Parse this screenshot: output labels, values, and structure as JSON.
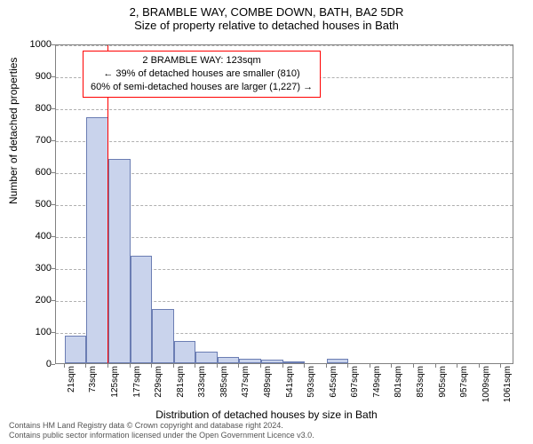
{
  "title_line1": "2, BRAMBLE WAY, COMBE DOWN, BATH, BA2 5DR",
  "title_line2": "Size of property relative to detached houses in Bath",
  "y_axis_label": "Number of detached properties",
  "x_axis_label": "Distribution of detached houses by size in Bath",
  "chart": {
    "type": "histogram",
    "background_color": "#ffffff",
    "grid_color": "#b0b0b0",
    "axis_color": "#808080",
    "bar_fill_color": "#c9d3ec",
    "bar_border_color": "#6b7db3",
    "marker_line_color": "#ff0000",
    "anno_border_color": "#ff0000",
    "x_min_sqm": 0,
    "x_max_sqm": 1092,
    "y_min": 0,
    "y_max": 1000,
    "y_tick_step": 100,
    "y_ticks": [
      0,
      100,
      200,
      300,
      400,
      500,
      600,
      700,
      800,
      900,
      1000
    ],
    "x_tick_labels": [
      "21sqm",
      "73sqm",
      "125sqm",
      "177sqm",
      "229sqm",
      "281sqm",
      "333sqm",
      "385sqm",
      "437sqm",
      "489sqm",
      "541sqm",
      "593sqm",
      "645sqm",
      "697sqm",
      "749sqm",
      "801sqm",
      "853sqm",
      "905sqm",
      "957sqm",
      "1009sqm",
      "1061sqm"
    ],
    "x_tick_positions_sqm": [
      21,
      73,
      125,
      177,
      229,
      281,
      333,
      385,
      437,
      489,
      541,
      593,
      645,
      697,
      749,
      801,
      853,
      905,
      957,
      1009,
      1061
    ],
    "marker_position_sqm": 123,
    "bin_width_sqm": 52,
    "bins": [
      {
        "start_sqm": 21,
        "count": 85
      },
      {
        "start_sqm": 73,
        "count": 770
      },
      {
        "start_sqm": 125,
        "count": 640
      },
      {
        "start_sqm": 177,
        "count": 335
      },
      {
        "start_sqm": 229,
        "count": 170
      },
      {
        "start_sqm": 281,
        "count": 70
      },
      {
        "start_sqm": 333,
        "count": 35
      },
      {
        "start_sqm": 385,
        "count": 20
      },
      {
        "start_sqm": 437,
        "count": 15
      },
      {
        "start_sqm": 489,
        "count": 12
      },
      {
        "start_sqm": 541,
        "count": 5
      },
      {
        "start_sqm": 593,
        "count": 0
      },
      {
        "start_sqm": 645,
        "count": 15
      },
      {
        "start_sqm": 697,
        "count": 0
      },
      {
        "start_sqm": 749,
        "count": 0
      },
      {
        "start_sqm": 801,
        "count": 0
      },
      {
        "start_sqm": 853,
        "count": 0
      },
      {
        "start_sqm": 905,
        "count": 0
      },
      {
        "start_sqm": 957,
        "count": 0
      },
      {
        "start_sqm": 1009,
        "count": 0
      }
    ]
  },
  "annotation": {
    "line1": "2 BRAMBLE WAY: 123sqm",
    "line2": "← 39% of detached houses are smaller (810)",
    "line3": "60% of semi-detached houses are larger (1,227) →"
  },
  "footer_line1": "Contains HM Land Registry data © Crown copyright and database right 2024.",
  "footer_line2": "Contains public sector information licensed under the Open Government Licence v3.0."
}
